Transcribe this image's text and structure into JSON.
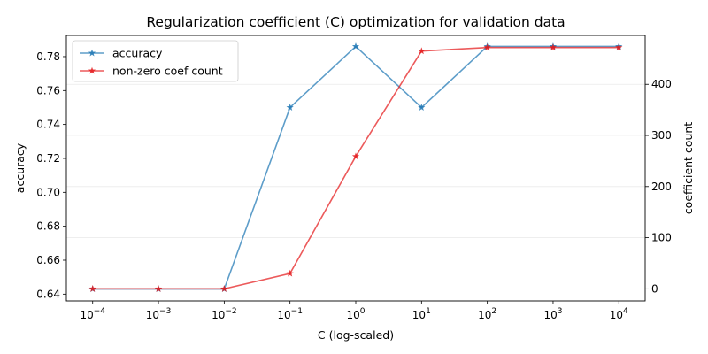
{
  "chart_data": {
    "type": "line",
    "title": "Regularization coefficient (C) optimization for validation data",
    "xlabel": "C (log-scaled)",
    "ylabel": "accuracy",
    "y2label": "coefficient count",
    "xscale": "log",
    "x": [
      0.0001,
      0.001,
      0.01,
      0.1,
      1,
      10,
      100,
      1000,
      10000
    ],
    "x_tick_labels": [
      {
        "base": "10",
        "exp": "−4"
      },
      {
        "base": "10",
        "exp": "−3"
      },
      {
        "base": "10",
        "exp": "−2"
      },
      {
        "base": "10",
        "exp": "−1"
      },
      {
        "base": "10",
        "exp": "0"
      },
      {
        "base": "10",
        "exp": "1"
      },
      {
        "base": "10",
        "exp": "2"
      },
      {
        "base": "10",
        "exp": "3"
      },
      {
        "base": "10",
        "exp": "4"
      }
    ],
    "ylim": [
      0.636,
      0.7925
    ],
    "y_ticks": [
      "0.64",
      "0.66",
      "0.68",
      "0.70",
      "0.72",
      "0.74",
      "0.76",
      "0.78"
    ],
    "y2lim": [
      -23.6,
      495.6
    ],
    "y2_ticks": [
      "0",
      "100",
      "200",
      "300",
      "400"
    ],
    "grid": "right-axis horizontal",
    "legend_position": "upper-left",
    "series": [
      {
        "name": "accuracy",
        "axis": "left",
        "color": "#1f77b4",
        "marker": "star",
        "values": [
          0.643,
          0.643,
          0.643,
          0.75,
          0.786,
          0.75,
          0.786,
          0.786,
          0.786
        ]
      },
      {
        "name": "non-zero coef count",
        "axis": "right",
        "color": "#e41a1c",
        "marker": "star",
        "values": [
          0,
          0,
          0,
          30,
          259,
          465,
          472,
          472,
          472
        ]
      }
    ]
  }
}
